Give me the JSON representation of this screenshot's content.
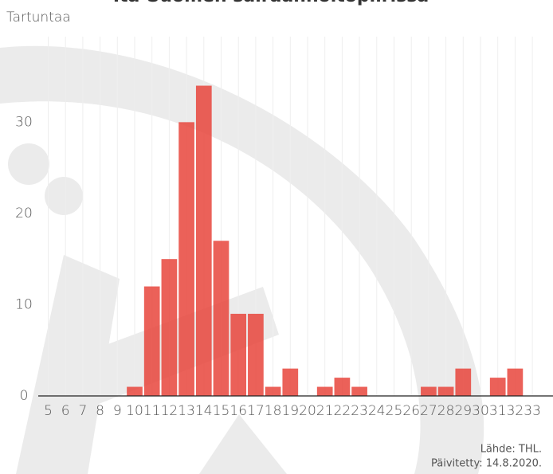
{
  "chart_data": {
    "type": "bar",
    "title": "Itä-Suomen sairaanhoitopiirissä",
    "y_label": "Tartuntaa",
    "categories": [
      "5",
      "6",
      "7",
      "8",
      "9",
      "10",
      "11",
      "12",
      "13",
      "14",
      "15",
      "16",
      "17",
      "18",
      "19",
      "20",
      "21",
      "22",
      "23",
      "24",
      "25",
      "26",
      "27",
      "28",
      "29",
      "30",
      "31",
      "32",
      "33"
    ],
    "values": [
      0,
      0,
      0,
      0,
      0,
      1,
      12,
      15,
      30,
      34,
      17,
      9,
      9,
      1,
      3,
      0,
      1,
      2,
      1,
      0,
      0,
      0,
      1,
      1,
      3,
      0,
      2,
      3,
      0
    ],
    "color": "#e8453c",
    "ylim": [
      0,
      38.5
    ],
    "yticks": [
      0,
      10,
      20,
      30
    ],
    "grid": true,
    "source": "Lähde: THL.",
    "updated": "Päivitetty: 14.8.2020."
  }
}
